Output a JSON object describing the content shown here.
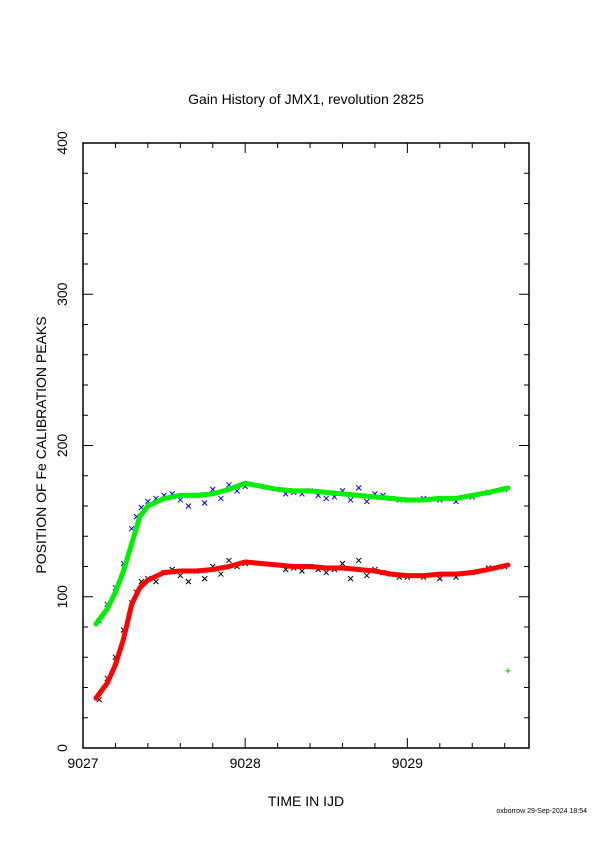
{
  "chart_data": {
    "type": "scatter",
    "title": "Gain History of JMX1, revolution 2825",
    "xlabel": "TIME IN IJD",
    "ylabel": "POSITION OF Fe CALIBRATION PEAKS",
    "xlim": [
      9027.0,
      9029.75
    ],
    "ylim": [
      0,
      400
    ],
    "x_ticks": [
      "9027",
      "9028",
      "9029"
    ],
    "y_ticks": [
      "0",
      "100",
      "200",
      "300",
      "400"
    ],
    "grid": false,
    "legend": "none",
    "series": [
      {
        "marker": "x",
        "color": "#0000ff",
        "x": [
          9027.1,
          9027.15,
          9027.2,
          9027.25,
          9027.3,
          9027.33,
          9027.36,
          9027.4,
          9027.45,
          9027.5,
          9027.55,
          9027.6,
          9027.65,
          9027.7,
          9027.75,
          9027.8,
          9027.85,
          9027.9,
          9027.95,
          9028.0,
          9028.25,
          9028.3,
          9028.35,
          9028.4,
          9028.45,
          9028.5,
          9028.55,
          9028.6,
          9028.65,
          9028.7,
          9028.75,
          9028.8,
          9028.85,
          9028.9,
          9028.95,
          9029.0,
          9029.1,
          9029.2,
          9029.3,
          9029.4,
          9029.5,
          9029.6
        ],
        "y": [
          84,
          95,
          106,
          122,
          145,
          153,
          159,
          163,
          165,
          167,
          168,
          164,
          160,
          167,
          162,
          171,
          165,
          174,
          170,
          173,
          168,
          169,
          168,
          170,
          167,
          165,
          166,
          170,
          164,
          172,
          163,
          168,
          167,
          165,
          164,
          164,
          165,
          164,
          163,
          166,
          169,
          171
        ]
      },
      {
        "marker": "x",
        "color": "#000000",
        "x": [
          9027.1,
          9027.15,
          9027.2,
          9027.25,
          9027.3,
          9027.33,
          9027.36,
          9027.4,
          9027.45,
          9027.5,
          9027.55,
          9027.6,
          9027.65,
          9027.7,
          9027.75,
          9027.8,
          9027.85,
          9027.9,
          9027.95,
          9028.0,
          9028.25,
          9028.3,
          9028.35,
          9028.4,
          9028.45,
          9028.5,
          9028.55,
          9028.6,
          9028.65,
          9028.7,
          9028.75,
          9028.8,
          9028.85,
          9028.9,
          9028.95,
          9029.0,
          9029.1,
          9029.2,
          9029.3,
          9029.4,
          9029.5,
          9029.6
        ],
        "y": [
          32,
          46,
          60,
          78,
          96,
          103,
          110,
          112,
          110,
          116,
          118,
          114,
          110,
          117,
          112,
          120,
          115,
          124,
          120,
          122,
          118,
          119,
          117,
          120,
          118,
          116,
          118,
          122,
          112,
          124,
          114,
          118,
          116,
          115,
          113,
          113,
          113,
          112,
          113,
          116,
          119,
          120
        ]
      },
      {
        "marker": "line",
        "color": "#00ee00",
        "x": [
          9027.08,
          9027.15,
          9027.2,
          9027.25,
          9027.3,
          9027.35,
          9027.4,
          9027.5,
          9027.6,
          9027.7,
          9027.8,
          9027.9,
          9028.0,
          9028.1,
          9028.2,
          9028.3,
          9028.4,
          9028.5,
          9028.6,
          9028.7,
          9028.8,
          9028.9,
          9029.0,
          9029.1,
          9029.2,
          9029.3,
          9029.4,
          9029.5,
          9029.62
        ],
        "y": [
          82,
          92,
          103,
          117,
          135,
          153,
          160,
          165,
          167,
          167,
          168,
          171,
          175,
          173,
          171,
          170,
          170,
          169,
          168,
          167,
          166,
          165,
          164,
          164,
          165,
          165,
          167,
          169,
          172
        ]
      },
      {
        "marker": "line",
        "color": "#ff0000",
        "x": [
          9027.08,
          9027.15,
          9027.2,
          9027.25,
          9027.3,
          9027.35,
          9027.4,
          9027.5,
          9027.6,
          9027.7,
          9027.8,
          9027.9,
          9028.0,
          9028.1,
          9028.2,
          9028.3,
          9028.4,
          9028.5,
          9028.6,
          9028.7,
          9028.8,
          9028.9,
          9029.0,
          9029.1,
          9029.2,
          9029.3,
          9029.4,
          9029.5,
          9029.62
        ],
        "y": [
          33,
          43,
          55,
          72,
          95,
          106,
          111,
          116,
          117,
          117,
          118,
          120,
          123,
          122,
          121,
          120,
          120,
          119,
          119,
          118,
          117,
          115,
          114,
          114,
          115,
          115,
          116,
          118,
          121
        ]
      },
      {
        "marker": "+",
        "color": "#00cc00",
        "x": [
          9029.62
        ],
        "y": [
          51
        ]
      }
    ]
  },
  "footer": "oxborrow 29-Sep-2024 18:54"
}
